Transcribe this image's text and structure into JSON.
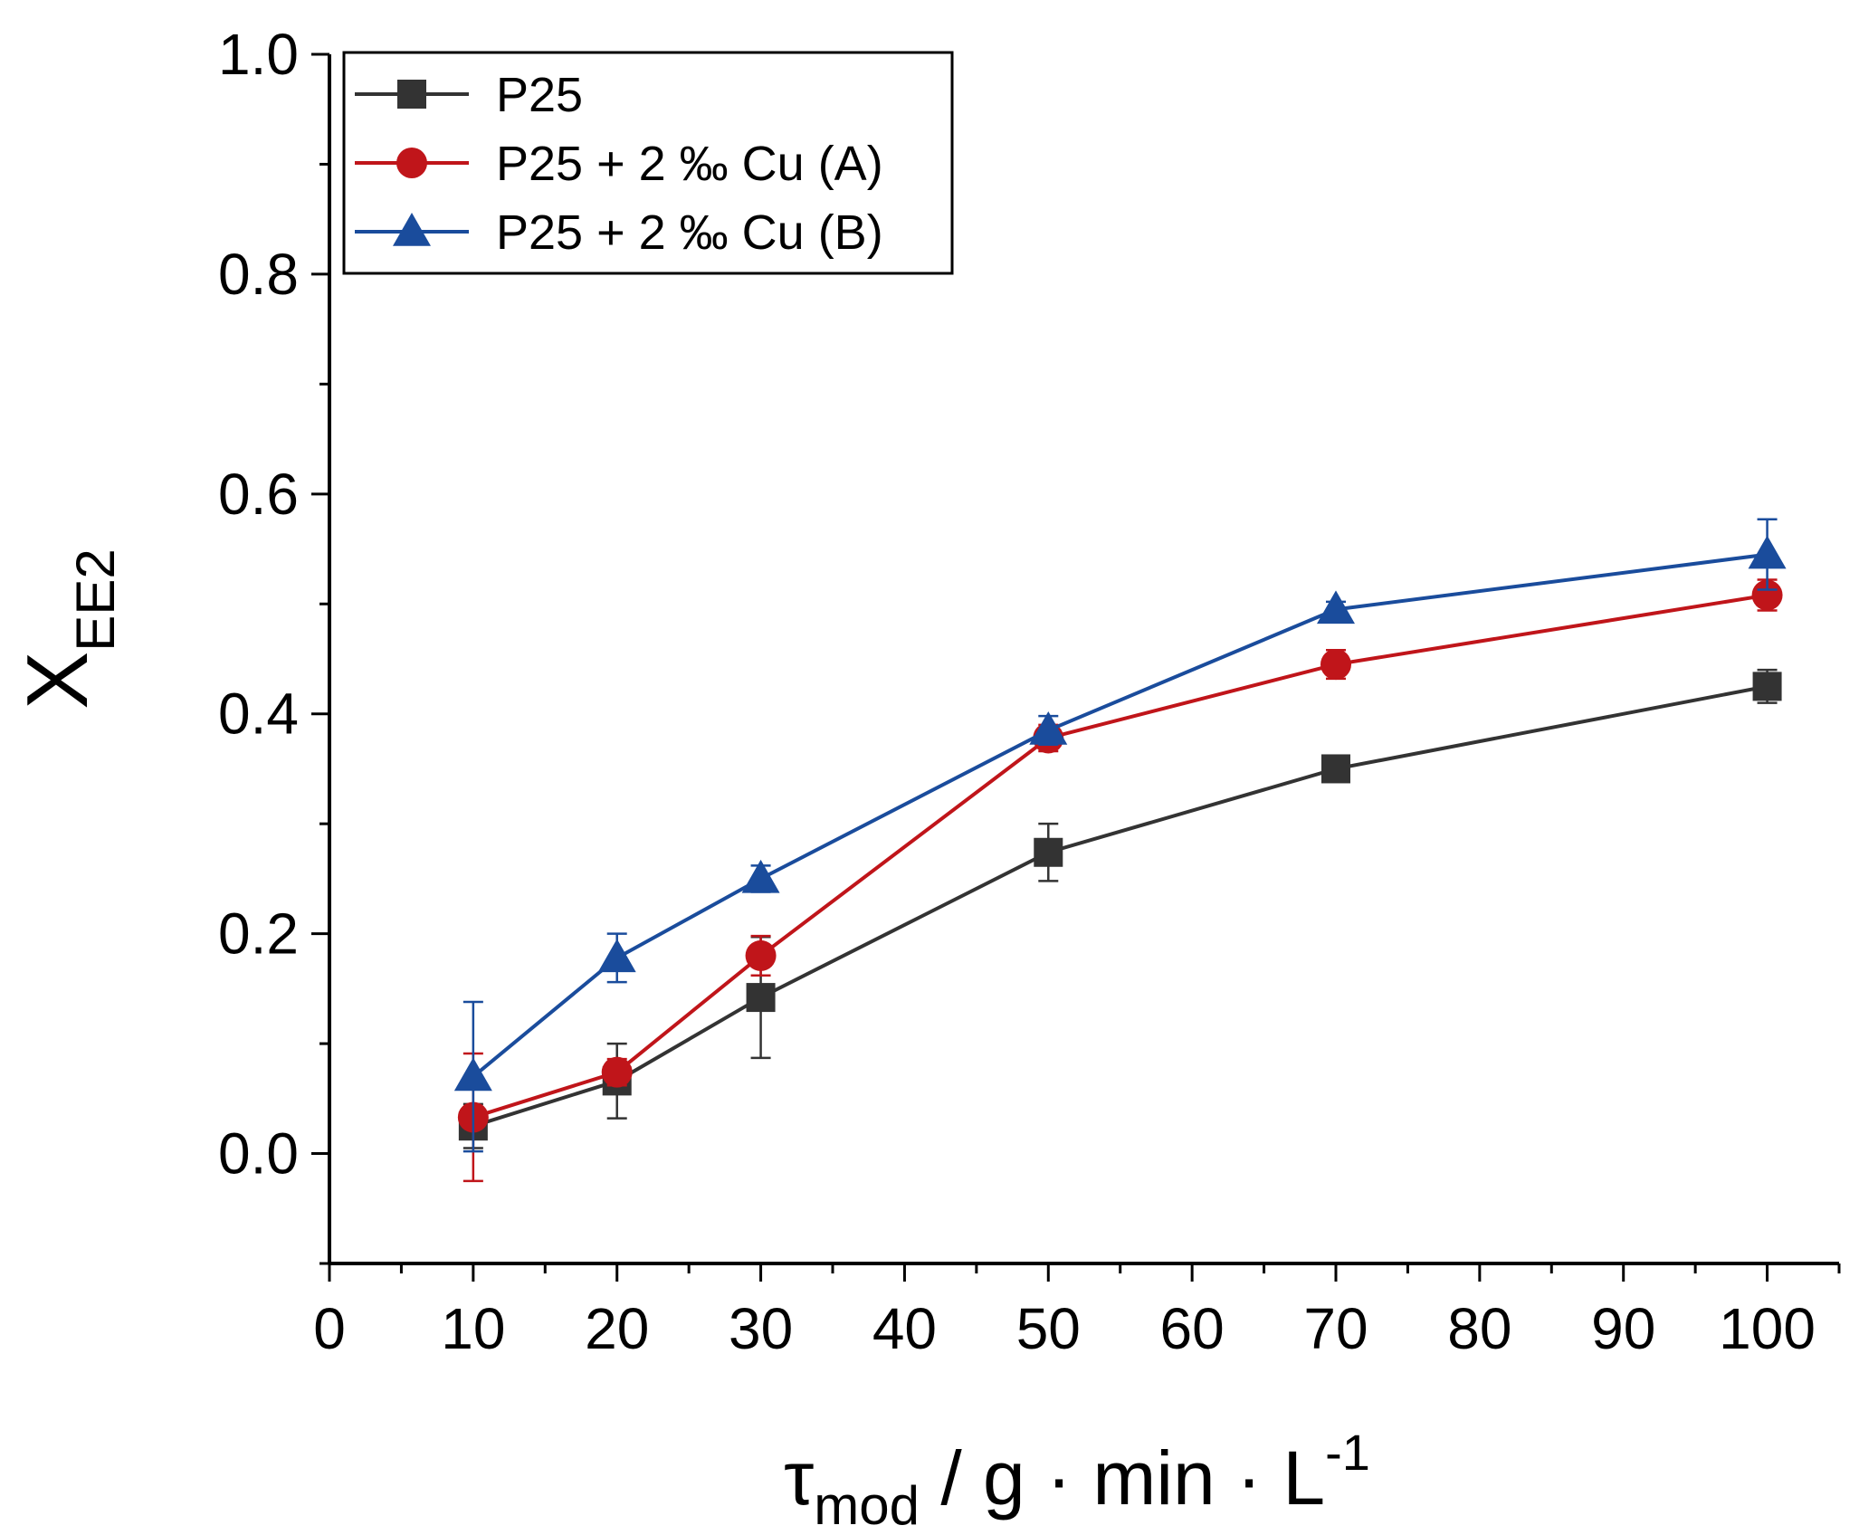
{
  "chart_data": {
    "type": "line",
    "xlabel": {
      "main": "τ",
      "sub": "mod",
      "rest": " / g · min · L",
      "sup": "-1"
    },
    "ylabel": {
      "main": "X",
      "sub": "EE2"
    },
    "xlim": [
      0,
      105
    ],
    "ylim": [
      -0.1,
      1.0
    ],
    "xticks": [
      0,
      10,
      20,
      30,
      40,
      50,
      60,
      70,
      80,
      90,
      100
    ],
    "yticks": [
      0.0,
      0.2,
      0.4,
      0.6,
      0.8,
      1.0
    ],
    "ytick_labels": [
      "0.0",
      "0.2",
      "0.4",
      "0.6",
      "0.8",
      "1.0"
    ],
    "x": [
      10,
      20,
      30,
      50,
      70,
      100
    ],
    "legend_position": "top-left",
    "grid": false,
    "series": [
      {
        "name": "P25",
        "color": "#333333",
        "marker": "square",
        "values": [
          0.025,
          0.066,
          0.142,
          0.274,
          0.35,
          0.425
        ],
        "errors": [
          0.02,
          0.034,
          0.055,
          0.026,
          0.008,
          0.015
        ]
      },
      {
        "name": "P25 + 2 ‰ Cu (A)",
        "color": "#c0151a",
        "marker": "circle",
        "values": [
          0.033,
          0.074,
          0.18,
          0.378,
          0.445,
          0.508
        ],
        "errors": [
          0.058,
          0.012,
          0.018,
          0.012,
          0.013,
          0.014
        ]
      },
      {
        "name": "P25 + 2 ‰ Cu (B)",
        "color": "#1a4c9c",
        "marker": "triangle",
        "values": [
          0.07,
          0.178,
          0.25,
          0.385,
          0.495,
          0.545
        ],
        "errors": [
          0.068,
          0.022,
          0.012,
          0.013,
          0.007,
          0.032
        ]
      }
    ]
  }
}
